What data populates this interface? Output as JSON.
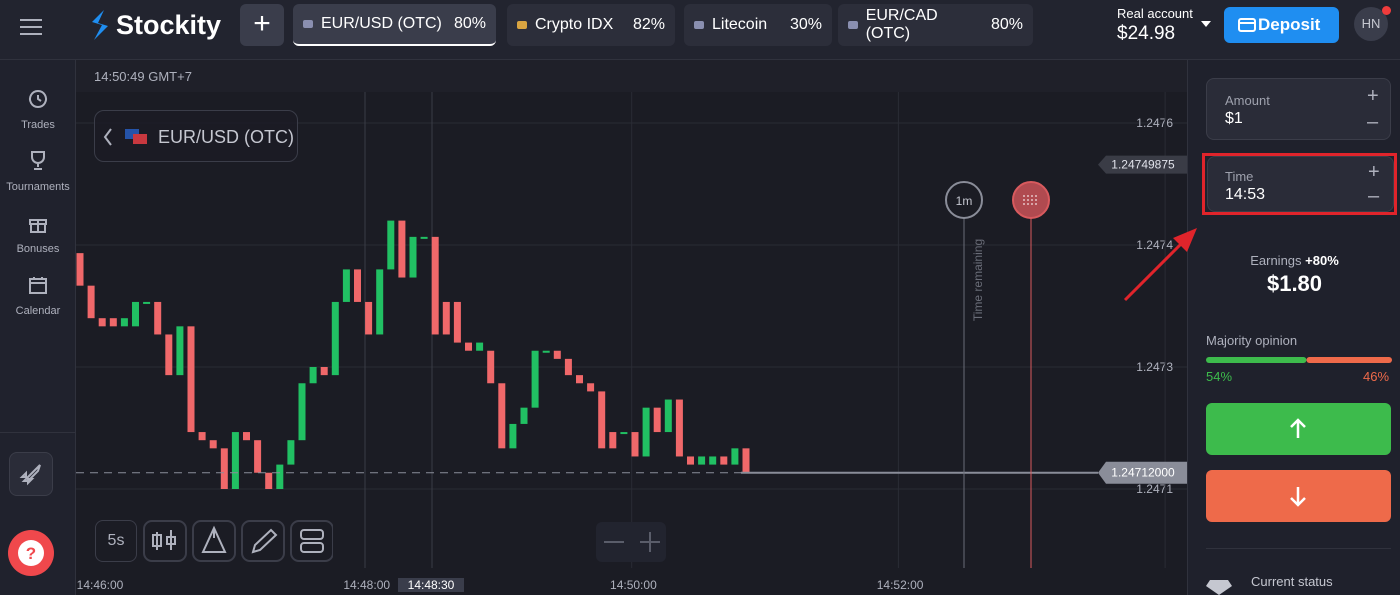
{
  "header": {
    "brand": "Stockity",
    "tabs": [
      {
        "label": "EUR/USD (OTC)",
        "payout": "80%"
      },
      {
        "label": "Crypto IDX",
        "payout": "82%"
      },
      {
        "label": "Litecoin",
        "payout": "30%"
      },
      {
        "label": "EUR/CAD (OTC)",
        "payout": "80%"
      }
    ],
    "account": {
      "label": "Real account",
      "balance": "$24.98"
    },
    "deposit": "Deposit",
    "avatar": "HN"
  },
  "sidebar": {
    "items": [
      "Trades",
      "Tournaments",
      "Bonuses",
      "Calendar"
    ]
  },
  "chart": {
    "server_time": "14:50:49 GMT+7",
    "asset": "EUR/USD (OTC)",
    "yticks": [
      {
        "value": 1.24755,
        "label": "1.2476"
      },
      {
        "value": 1.2474,
        "label": "1.2474"
      },
      {
        "value": 1.24725,
        "label": "1.2473"
      },
      {
        "value": 1.2471,
        "label": "1.2471"
      }
    ],
    "marker_price": 1.24749875,
    "current_price": {
      "value": 1.24712,
      "label": "1.24712000"
    },
    "time_labels": [
      "14:46:00",
      "14:48:00",
      "14:50:00",
      "14:52:00"
    ],
    "cursor_time": "14:48:30",
    "timeframe": "5s",
    "timer": "1m",
    "time_remaining": "Time remaining",
    "up_color": "#21c063",
    "down_color": "#f0686a",
    "candles": [
      [
        1.24739,
        1.24735
      ],
      [
        1.24735,
        1.24731
      ],
      [
        1.24731,
        1.2473
      ],
      [
        1.24731,
        1.2473
      ],
      [
        1.2473,
        1.24731
      ],
      [
        1.2473,
        1.24733
      ],
      [
        1.24733,
        1.24733
      ],
      [
        1.24733,
        1.24729
      ],
      [
        1.24729,
        1.24724
      ],
      [
        1.24724,
        1.2473
      ],
      [
        1.2473,
        1.24717
      ],
      [
        1.24717,
        1.24716
      ],
      [
        1.24716,
        1.24715
      ],
      [
        1.24715,
        1.2471
      ],
      [
        1.2471,
        1.24717
      ],
      [
        1.24717,
        1.24716
      ],
      [
        1.24716,
        1.24712
      ],
      [
        1.24712,
        1.2471
      ],
      [
        1.2471,
        1.24713
      ],
      [
        1.24713,
        1.24716
      ],
      [
        1.24716,
        1.24723
      ],
      [
        1.24723,
        1.24725
      ],
      [
        1.24725,
        1.24724
      ],
      [
        1.24724,
        1.24733
      ],
      [
        1.24733,
        1.24737
      ],
      [
        1.24737,
        1.24733
      ],
      [
        1.24733,
        1.24729
      ],
      [
        1.24729,
        1.24737
      ],
      [
        1.24737,
        1.24743
      ],
      [
        1.24743,
        1.24736
      ],
      [
        1.24736,
        1.24741
      ],
      [
        1.24741,
        1.24741
      ],
      [
        1.24741,
        1.24729
      ],
      [
        1.24733,
        1.24729
      ],
      [
        1.24733,
        1.24728
      ],
      [
        1.24728,
        1.24727
      ],
      [
        1.24727,
        1.24728
      ],
      [
        1.24727,
        1.24723
      ],
      [
        1.24723,
        1.24715
      ],
      [
        1.24715,
        1.24718
      ],
      [
        1.24718,
        1.2472
      ],
      [
        1.2472,
        1.24727
      ],
      [
        1.24727,
        1.24727
      ],
      [
        1.24727,
        1.24726
      ],
      [
        1.24726,
        1.24724
      ],
      [
        1.24724,
        1.24723
      ],
      [
        1.24723,
        1.24722
      ],
      [
        1.24722,
        1.24715
      ],
      [
        1.24717,
        1.24715
      ],
      [
        1.24717,
        1.24717
      ],
      [
        1.24717,
        1.24714
      ],
      [
        1.24714,
        1.2472
      ],
      [
        1.2472,
        1.24717
      ],
      [
        1.24717,
        1.24721
      ],
      [
        1.24721,
        1.24714
      ],
      [
        1.24714,
        1.24713
      ],
      [
        1.24713,
        1.24714
      ],
      [
        1.24713,
        1.24714
      ],
      [
        1.24714,
        1.24713
      ],
      [
        1.24713,
        1.24715
      ],
      [
        1.24715,
        1.24712
      ]
    ]
  },
  "panel": {
    "amount": {
      "label": "Amount",
      "value": "$1"
    },
    "time": {
      "label": "Time",
      "value": "14:53"
    },
    "earnings": {
      "label": "Earnings",
      "percent": "+80%",
      "value": "$1.80"
    },
    "majority": {
      "label": "Majority opinion",
      "up": {
        "value": 54,
        "label": "54%"
      },
      "down": {
        "value": 46,
        "label": "46%"
      }
    },
    "status": "Current status"
  }
}
